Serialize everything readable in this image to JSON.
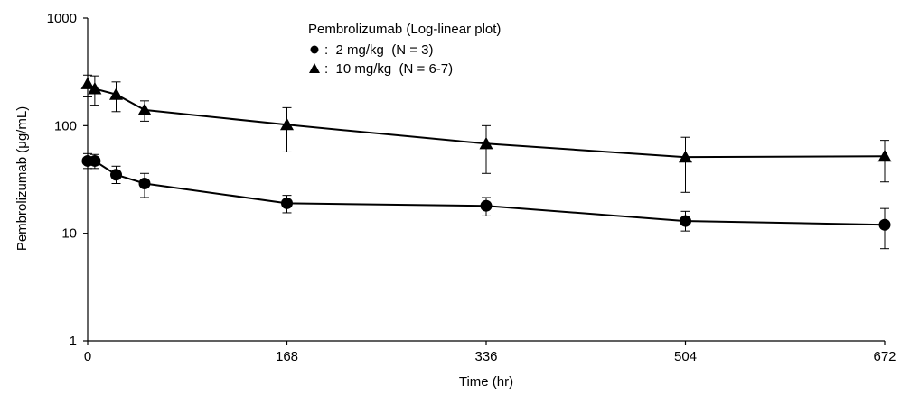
{
  "chart_data": {
    "type": "line",
    "title": "Pembrolizumab  (Log-linear plot)",
    "xlabel": "Time  (hr)",
    "ylabel": "Pembrolizumab  (μg/mL)",
    "xlim": [
      0,
      672
    ],
    "ylim": [
      1,
      1000
    ],
    "yscale": "log",
    "x_ticks": [
      "0",
      "168",
      "336",
      "504",
      "672"
    ],
    "y_ticks": [
      "1",
      "10",
      "100",
      "1000"
    ],
    "legend_position": "top-center",
    "grid": false,
    "series": [
      {
        "name": ":  2 mg/kg  (N = 3)",
        "marker": "circle",
        "color": "#000000",
        "points": [
          {
            "x": 0,
            "y": 47,
            "err_low": 40,
            "err_high": 55
          },
          {
            "x": 6,
            "y": 47,
            "err_low": 40,
            "err_high": 54
          },
          {
            "x": 24,
            "y": 35,
            "err_low": 29,
            "err_high": 42
          },
          {
            "x": 48,
            "y": 29,
            "err_low": 21.5,
            "err_high": 36
          },
          {
            "x": 168,
            "y": 19,
            "err_low": 15.5,
            "err_high": 22.5
          },
          {
            "x": 336,
            "y": 18,
            "err_low": 14.5,
            "err_high": 21.5
          },
          {
            "x": 504,
            "y": 13,
            "err_low": 10.5,
            "err_high": 16
          },
          {
            "x": 672,
            "y": 12,
            "err_low": 7.2,
            "err_high": 17
          }
        ]
      },
      {
        "name": ":  10 mg/kg  (N = 6-7)",
        "marker": "triangle",
        "color": "#000000",
        "points": [
          {
            "x": 0,
            "y": 245,
            "err_low": 185,
            "err_high": 295
          },
          {
            "x": 6,
            "y": 220,
            "err_low": 155,
            "err_high": 290
          },
          {
            "x": 24,
            "y": 195,
            "err_low": 135,
            "err_high": 255
          },
          {
            "x": 48,
            "y": 140,
            "err_low": 110,
            "err_high": 170
          },
          {
            "x": 168,
            "y": 102,
            "err_low": 57,
            "err_high": 147
          },
          {
            "x": 336,
            "y": 68,
            "err_low": 36,
            "err_high": 100
          },
          {
            "x": 504,
            "y": 51,
            "err_low": 24,
            "err_high": 78
          },
          {
            "x": 672,
            "y": 52,
            "err_low": 30,
            "err_high": 73
          }
        ]
      }
    ]
  }
}
